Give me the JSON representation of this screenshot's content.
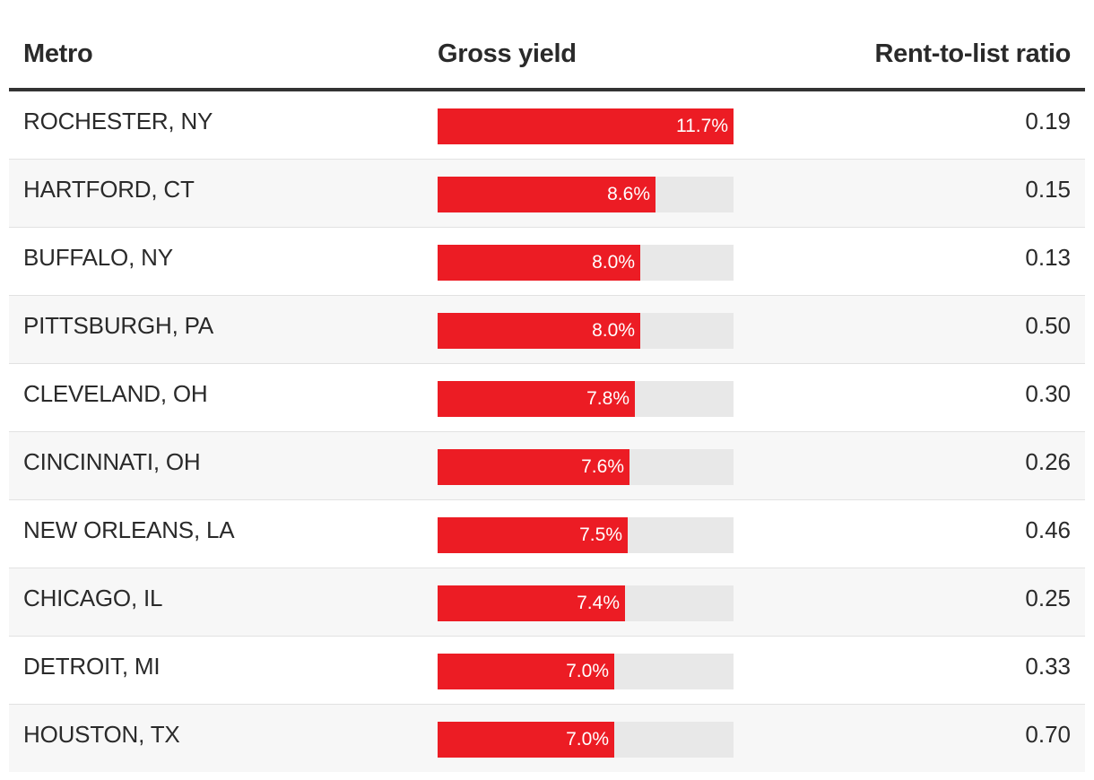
{
  "table": {
    "headers": {
      "metro": "Metro",
      "yield": "Gross yield",
      "ratio": "Rent-to-list ratio"
    }
  },
  "colors": {
    "bar_fill": "#ec1c24",
    "bar_track": "#e8e8e8",
    "header_rule": "#333333"
  },
  "chart_data": {
    "type": "table",
    "columns": [
      "Metro",
      "Gross yield",
      "Rent-to-list ratio"
    ],
    "yield_max": 11.7,
    "rows": [
      {
        "metro": "ROCHESTER, NY",
        "yield": 11.7,
        "yield_label": "11.7%",
        "ratio": "0.19"
      },
      {
        "metro": "HARTFORD, CT",
        "yield": 8.6,
        "yield_label": "8.6%",
        "ratio": "0.15"
      },
      {
        "metro": "BUFFALO, NY",
        "yield": 8.0,
        "yield_label": "8.0%",
        "ratio": "0.13"
      },
      {
        "metro": "PITTSBURGH, PA",
        "yield": 8.0,
        "yield_label": "8.0%",
        "ratio": "0.50"
      },
      {
        "metro": "CLEVELAND, OH",
        "yield": 7.8,
        "yield_label": "7.8%",
        "ratio": "0.30"
      },
      {
        "metro": "CINCINNATI, OH",
        "yield": 7.6,
        "yield_label": "7.6%",
        "ratio": "0.26"
      },
      {
        "metro": "NEW ORLEANS, LA",
        "yield": 7.5,
        "yield_label": "7.5%",
        "ratio": "0.46"
      },
      {
        "metro": "CHICAGO, IL",
        "yield": 7.4,
        "yield_label": "7.4%",
        "ratio": "0.25"
      },
      {
        "metro": "DETROIT, MI",
        "yield": 7.0,
        "yield_label": "7.0%",
        "ratio": "0.33"
      },
      {
        "metro": "HOUSTON, TX",
        "yield": 7.0,
        "yield_label": "7.0%",
        "ratio": "0.70"
      }
    ]
  }
}
